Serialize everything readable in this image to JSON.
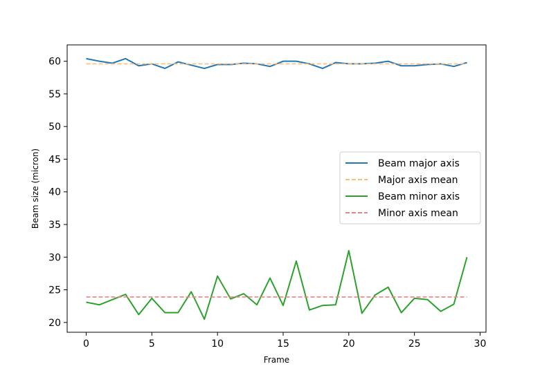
{
  "chart_data": {
    "type": "line",
    "title": "",
    "xlabel": "Frame",
    "ylabel": "Beam size (micron)",
    "xlim": [
      -1.45,
      30.45
    ],
    "ylim": [
      18.5,
      62.5
    ],
    "xticks": [
      0,
      5,
      10,
      15,
      20,
      25,
      30
    ],
    "yticks": [
      20,
      25,
      30,
      35,
      40,
      45,
      50,
      55,
      60
    ],
    "grid": false,
    "legend": {
      "placement": "center-right"
    },
    "x": [
      0,
      1,
      2,
      3,
      4,
      5,
      6,
      7,
      8,
      9,
      10,
      11,
      12,
      13,
      14,
      15,
      16,
      17,
      18,
      19,
      20,
      21,
      22,
      23,
      24,
      25,
      26,
      27,
      28,
      29
    ],
    "series": [
      {
        "name": "Beam major axis",
        "color": "#1f77b4",
        "style": "solid",
        "values": [
          60.4,
          60.0,
          59.7,
          60.4,
          59.3,
          59.6,
          58.9,
          59.9,
          59.4,
          58.9,
          59.5,
          59.5,
          59.7,
          59.6,
          59.2,
          60.0,
          60.0,
          59.6,
          58.9,
          59.8,
          59.6,
          59.6,
          59.7,
          60.0,
          59.3,
          59.3,
          59.5,
          59.6,
          59.2,
          59.8
        ]
      },
      {
        "name": "Major axis mean",
        "color": "#ffbb78",
        "style": "dashed",
        "values": [
          59.6,
          59.6,
          59.6,
          59.6,
          59.6,
          59.6,
          59.6,
          59.6,
          59.6,
          59.6,
          59.6,
          59.6,
          59.6,
          59.6,
          59.6,
          59.6,
          59.6,
          59.6,
          59.6,
          59.6,
          59.6,
          59.6,
          59.6,
          59.6,
          59.6,
          59.6,
          59.6,
          59.6,
          59.6,
          59.6
        ]
      },
      {
        "name": "Beam minor axis",
        "color": "#2ca02c",
        "style": "solid",
        "values": [
          23.1,
          22.7,
          23.5,
          24.3,
          21.2,
          23.7,
          21.5,
          21.5,
          24.7,
          20.5,
          27.1,
          23.6,
          24.4,
          22.7,
          26.8,
          22.6,
          29.4,
          21.9,
          22.6,
          22.7,
          31.0,
          21.4,
          24.2,
          25.4,
          21.5,
          23.7,
          23.5,
          21.7,
          22.8,
          30.0
        ]
      },
      {
        "name": "Minor axis mean",
        "color": "#f08080",
        "style": "dashed",
        "values": [
          23.9,
          23.9,
          23.9,
          23.9,
          23.9,
          23.9,
          23.9,
          23.9,
          23.9,
          23.9,
          23.9,
          23.9,
          23.9,
          23.9,
          23.9,
          23.9,
          23.9,
          23.9,
          23.9,
          23.9,
          23.9,
          23.9,
          23.9,
          23.9,
          23.9,
          23.9,
          23.9,
          23.9,
          23.9,
          23.9
        ]
      }
    ]
  }
}
